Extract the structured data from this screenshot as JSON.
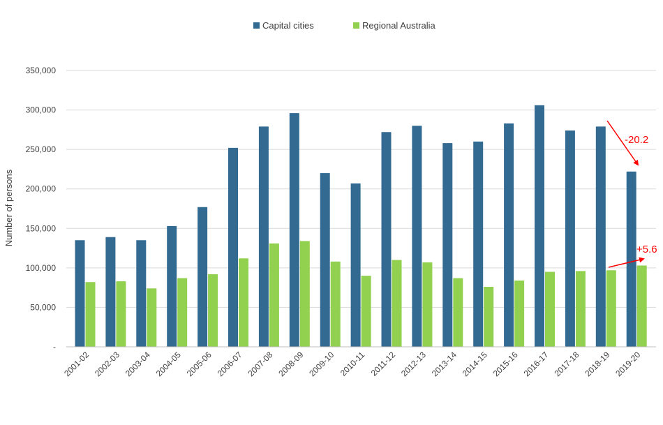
{
  "chart_data": {
    "type": "bar",
    "title": "",
    "xlabel": "",
    "ylabel": "Number of persons",
    "ylim": [
      0,
      350000
    ],
    "yticks": [
      "-",
      "50,000",
      "100,000",
      "150,000",
      "200,000",
      "250,000",
      "300,000",
      "350,000"
    ],
    "grid": true,
    "legend_position": "top",
    "categories": [
      "2001-02",
      "2002-03",
      "2003-04",
      "2004-05",
      "2005-06",
      "2006-07",
      "2007-08",
      "2008-09",
      "2009-10",
      "2010-11",
      "2011-12",
      "2012-13",
      "2013-14",
      "2014-15",
      "2015-16",
      "2016-17",
      "2017-18",
      "2018-19",
      "2019-20"
    ],
    "series": [
      {
        "name": "Capital cities",
        "color": "#336a91",
        "values": [
          135000,
          139000,
          135000,
          153000,
          177000,
          252000,
          279000,
          296000,
          220000,
          207000,
          272000,
          280000,
          258000,
          260000,
          283000,
          306000,
          274000,
          279000,
          222000
        ]
      },
      {
        "name": "Regional Australia",
        "color": "#92d050",
        "values": [
          82000,
          83000,
          74000,
          87000,
          92000,
          112000,
          131000,
          134000,
          108000,
          90000,
          110000,
          107000,
          87000,
          76000,
          84000,
          95000,
          96000,
          97000,
          103000
        ]
      }
    ],
    "annotations": [
      {
        "text": "-20.2",
        "color": "#ff0000"
      },
      {
        "text": "+5.6",
        "color": "#ff0000"
      }
    ]
  }
}
